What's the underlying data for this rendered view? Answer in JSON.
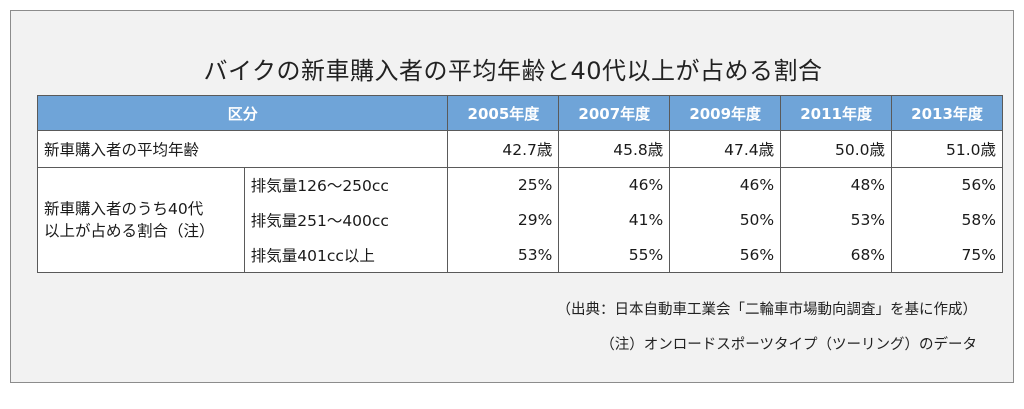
{
  "title": "バイクの新車購入者の平均年齢と40代以上が占める割合",
  "table": {
    "header_label": "区分",
    "years": [
      "2005年度",
      "2007年度",
      "2009年度",
      "2011年度",
      "2013年度"
    ],
    "avg_age": {
      "label": "新車購入者の平均年齢",
      "values": [
        "42.7歳",
        "45.8歳",
        "47.4歳",
        "50.0歳",
        "51.0歳"
      ]
    },
    "share_40plus": {
      "label_line1": "新車購入者のうち40代",
      "label_line2": "以上が占める割合（注）",
      "rows": [
        {
          "displacement": "排気量126～250cc",
          "values": [
            "25%",
            "46%",
            "46%",
            "48%",
            "56%"
          ]
        },
        {
          "displacement": "排気量251～400cc",
          "values": [
            "29%",
            "41%",
            "50%",
            "53%",
            "58%"
          ]
        },
        {
          "displacement": "排気量401cc以上",
          "values": [
            "53%",
            "55%",
            "56%",
            "68%",
            "75%"
          ]
        }
      ]
    }
  },
  "notes": {
    "source": "（出典：日本自動車工業会「二輪車市場動向調査」を基に作成）",
    "note": "（注）オンロードスポーツタイプ（ツーリング）のデータ"
  }
}
